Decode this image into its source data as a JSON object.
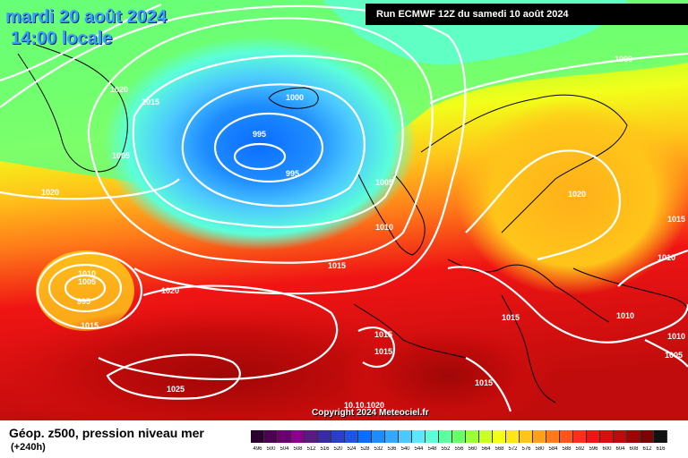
{
  "header": {
    "date": "mardi 20 août 2024",
    "time": "14:00 locale",
    "run": "Run ECMWF 12Z du samedi 10 août 2024"
  },
  "copyright": "Copyright 2024 Meteociel.fr",
  "legend": {
    "parameter": "Géop. z500, pression niveau mer",
    "lead_time": "(+240h)",
    "scale": [
      {
        "value": "496",
        "color": "#2b002e"
      },
      {
        "value": "500",
        "color": "#4d0052"
      },
      {
        "value": "504",
        "color": "#6a0070"
      },
      {
        "value": "508",
        "color": "#8c008f"
      },
      {
        "value": "512",
        "color": "#5b1a80"
      },
      {
        "value": "516",
        "color": "#3a2aa6"
      },
      {
        "value": "520",
        "color": "#2a3ec8"
      },
      {
        "value": "524",
        "color": "#1f55e6"
      },
      {
        "value": "528",
        "color": "#0a6dff"
      },
      {
        "value": "532",
        "color": "#1e8cff"
      },
      {
        "value": "536",
        "color": "#34a8ff"
      },
      {
        "value": "540",
        "color": "#4cc8ff"
      },
      {
        "value": "544",
        "color": "#5ee6ff"
      },
      {
        "value": "548",
        "color": "#5cffd8"
      },
      {
        "value": "552",
        "color": "#5cffa0"
      },
      {
        "value": "556",
        "color": "#66ff66"
      },
      {
        "value": "560",
        "color": "#9cff3a"
      },
      {
        "value": "564",
        "color": "#ccff22"
      },
      {
        "value": "568",
        "color": "#f4ff1a"
      },
      {
        "value": "572",
        "color": "#ffe61a"
      },
      {
        "value": "576",
        "color": "#ffc51a"
      },
      {
        "value": "580",
        "color": "#ffa01a"
      },
      {
        "value": "584",
        "color": "#ff7a1a"
      },
      {
        "value": "588",
        "color": "#ff531a"
      },
      {
        "value": "592",
        "color": "#ff2e1a"
      },
      {
        "value": "596",
        "color": "#f01414"
      },
      {
        "value": "600",
        "color": "#d80f0f"
      },
      {
        "value": "604",
        "color": "#bd0a0a"
      },
      {
        "value": "608",
        "color": "#9e0606"
      },
      {
        "value": "612",
        "color": "#7a0303"
      },
      {
        "value": "616",
        "color": "#111111"
      }
    ]
  },
  "isobar_labels": [
    {
      "id": "nw-1020",
      "text": "1020"
    },
    {
      "id": "nw-1015",
      "text": "1015"
    },
    {
      "id": "greenland-1005",
      "text": "1005"
    },
    {
      "id": "low-1000",
      "text": "1000"
    },
    {
      "id": "low-995-a",
      "text": "995"
    },
    {
      "id": "low-995-b",
      "text": "995"
    },
    {
      "id": "ne-1000",
      "text": "1000"
    },
    {
      "id": "west-1020",
      "text": "1020"
    },
    {
      "id": "uk-1005",
      "text": "1005"
    },
    {
      "id": "uk-1010",
      "text": "1010"
    },
    {
      "id": "atl-1015",
      "text": "1015"
    },
    {
      "id": "cyclone-1010",
      "text": "1010"
    },
    {
      "id": "cyclone-1005",
      "text": "1005"
    },
    {
      "id": "cyclone-995",
      "text": "995"
    },
    {
      "id": "cyclone-1015",
      "text": "1015"
    },
    {
      "id": "atl-1020",
      "text": "1020"
    },
    {
      "id": "azores-1025",
      "text": "1025"
    },
    {
      "id": "eu-1020",
      "text": "1020"
    },
    {
      "id": "east-1015",
      "text": "1015"
    },
    {
      "id": "east-1010",
      "text": "1010"
    },
    {
      "id": "alps-1015",
      "text": "1015"
    },
    {
      "id": "east-1010b",
      "text": "1010"
    },
    {
      "id": "iberia-1015",
      "text": "1015"
    },
    {
      "id": "iberia-1015b",
      "text": "1015"
    },
    {
      "id": "med-1015",
      "text": "1015"
    },
    {
      "id": "se-1010",
      "text": "1010"
    },
    {
      "id": "se-1005",
      "text": "1005"
    },
    {
      "id": "bottom-1010",
      "text": "10.10.1020"
    }
  ]
}
